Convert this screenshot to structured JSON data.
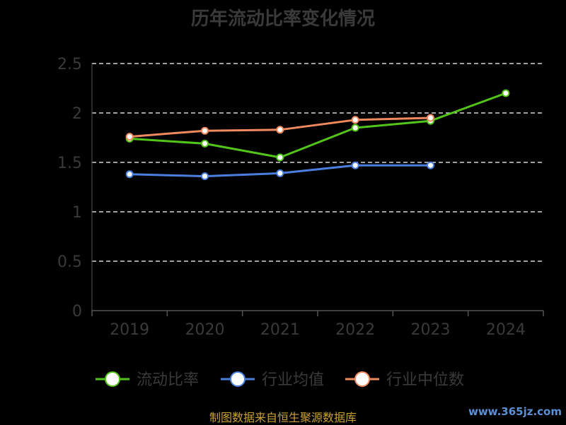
{
  "chart_data": {
    "type": "line",
    "title": "历年流动比率变化情况",
    "categories": [
      "2019",
      "2020",
      "2021",
      "2022",
      "2023",
      "2024"
    ],
    "ylim": [
      0,
      2.5
    ],
    "yticks": [
      "0",
      "0.5",
      "1",
      "1.5",
      "2",
      "2.5"
    ],
    "grid": true,
    "legend_position": "bottom",
    "series": [
      {
        "name": "流动比率",
        "color": "#52c41a",
        "values": [
          1.74,
          1.69,
          1.55,
          1.85,
          1.92,
          2.2
        ]
      },
      {
        "name": "行业均值",
        "color": "#4a7fe0",
        "values": [
          1.38,
          1.36,
          1.39,
          1.47,
          1.47,
          null
        ]
      },
      {
        "name": "行业中位数",
        "color": "#f08a5d",
        "values": [
          1.76,
          1.82,
          1.83,
          1.93,
          1.95,
          null
        ]
      }
    ]
  },
  "footer": {
    "source": "制图数据来自恒生聚源数据库",
    "watermark": "www.365jz.com"
  }
}
